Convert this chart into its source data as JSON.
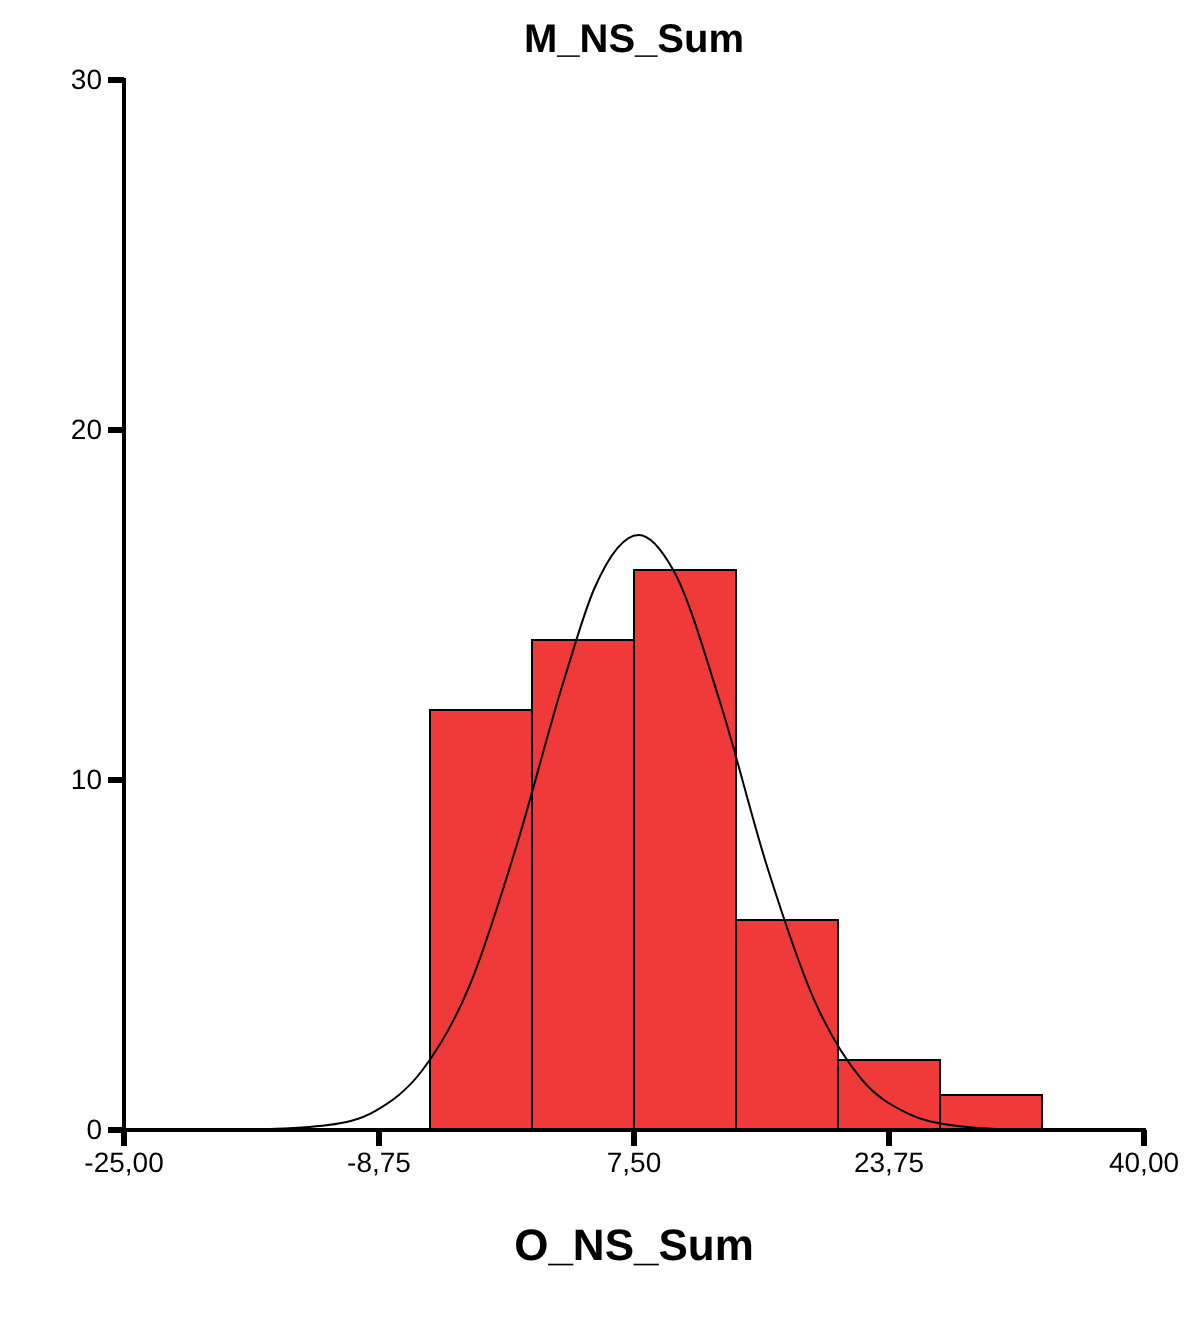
{
  "chart_data": {
    "type": "histogram",
    "title": "M_NS_Sum",
    "xlabel": "O_NS_Sum",
    "xlim": [
      -25,
      40
    ],
    "xticks": [
      {
        "value": -25,
        "label": "-25,00"
      },
      {
        "value": -8.75,
        "label": "-8,75"
      },
      {
        "value": 7.5,
        "label": "7,50"
      },
      {
        "value": 23.75,
        "label": "23,75"
      },
      {
        "value": 40,
        "label": "40,00"
      }
    ],
    "ylim": [
      0,
      30
    ],
    "yticks": [
      0,
      10,
      20,
      30
    ],
    "series": [
      {
        "color": "#f03a3a",
        "bins": [
          -5.5,
          1,
          7.5,
          14,
          20.5,
          27,
          33.5
        ],
        "values": [
          12,
          14,
          16,
          6,
          2,
          1
        ]
      },
      {
        "type": "line",
        "color": "#000000",
        "x": [
          -16,
          -12,
          -9,
          -6,
          -3,
          0,
          3,
          5,
          7.8,
          10,
          13,
          16,
          19,
          22,
          25,
          28,
          31
        ],
        "values": [
          0.02,
          0.14,
          0.54,
          1.7,
          4.1,
          8.1,
          12.8,
          15.5,
          17,
          16,
          12.2,
          7.5,
          3.7,
          1.45,
          0.46,
          0.12,
          0.02
        ]
      }
    ]
  }
}
